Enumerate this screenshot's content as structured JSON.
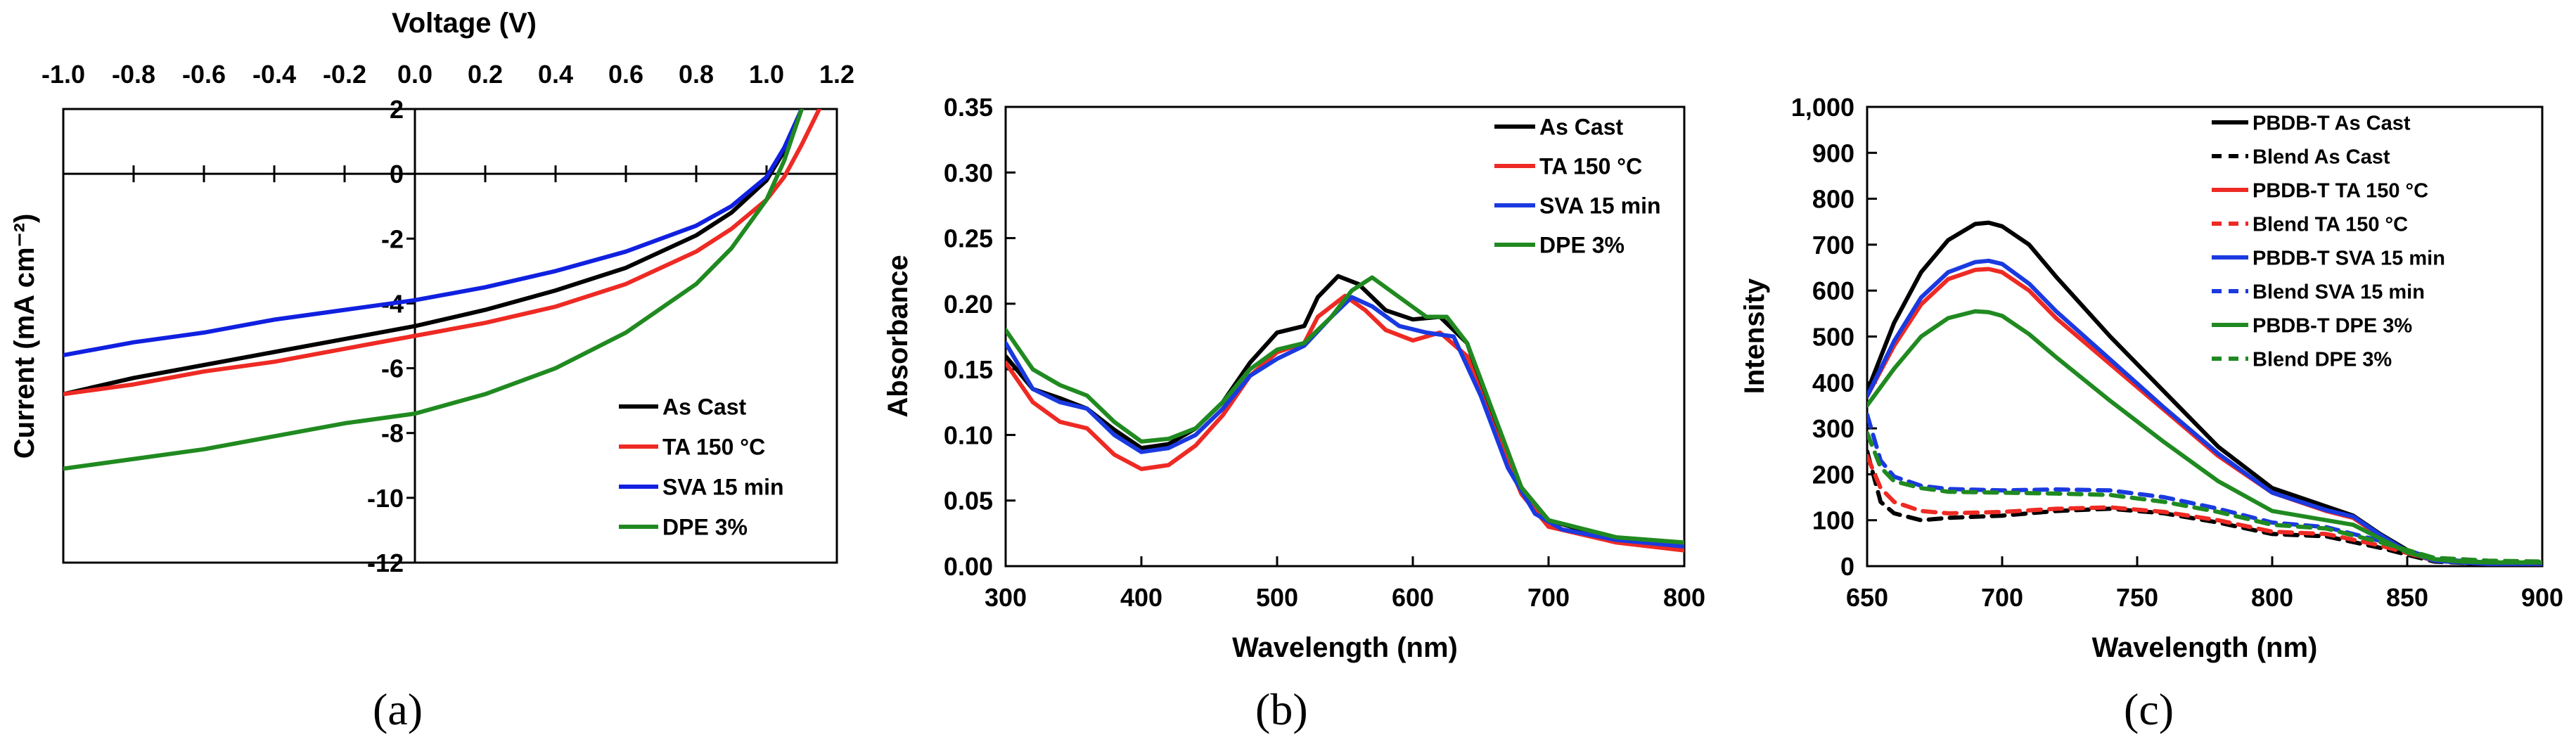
{
  "chart_data": [
    {
      "type": "line",
      "panel_label": "(a)",
      "title": "",
      "xlabel": "Voltage (V)",
      "ylabel": "Current (mA cm⁻²)",
      "xlim": [
        -1.0,
        1.2
      ],
      "ylim": [
        -12,
        2
      ],
      "xticks": [
        -1.0,
        -0.8,
        -0.6,
        -0.4,
        -0.2,
        0.0,
        0.2,
        0.4,
        0.6,
        0.8,
        1.0,
        1.2
      ],
      "xtick_labels": [
        "-1.0",
        "-0.8",
        "-0.6",
        "-0.4",
        "-0.2",
        "0.0",
        "0.2",
        "0.4",
        "0.6",
        "0.8",
        "1.0",
        "1.2"
      ],
      "yticks": [
        2,
        0,
        -2,
        -4,
        -6,
        -8,
        -10,
        -12
      ],
      "ytick_labels": [
        "2",
        "0",
        "-2",
        "-4",
        "-6",
        "-8",
        "-10",
        "-12"
      ],
      "legend_position": "bottom-right",
      "series": [
        {
          "name": "As Cast",
          "color": "#000000",
          "dashed": false,
          "x": [
            -1.0,
            -0.8,
            -0.6,
            -0.4,
            -0.2,
            0.0,
            0.2,
            0.4,
            0.6,
            0.8,
            0.9,
            1.0,
            1.05,
            1.1
          ],
          "y": [
            -6.8,
            -6.3,
            -5.9,
            -5.5,
            -5.1,
            -4.7,
            -4.2,
            -3.6,
            -2.9,
            -1.9,
            -1.2,
            -0.2,
            0.7,
            2.0
          ]
        },
        {
          "name": "TA 150 °C",
          "color": "#ee2a24",
          "dashed": false,
          "x": [
            -1.0,
            -0.8,
            -0.6,
            -0.4,
            -0.2,
            0.0,
            0.2,
            0.4,
            0.6,
            0.8,
            0.9,
            1.0,
            1.05,
            1.1,
            1.15
          ],
          "y": [
            -6.8,
            -6.5,
            -6.1,
            -5.8,
            -5.4,
            -5.0,
            -4.6,
            -4.1,
            -3.4,
            -2.4,
            -1.7,
            -0.8,
            -0.1,
            0.9,
            2.0
          ]
        },
        {
          "name": "SVA 15 min",
          "color": "#1020e0",
          "dashed": false,
          "x": [
            -1.0,
            -0.8,
            -0.6,
            -0.4,
            -0.2,
            0.0,
            0.2,
            0.4,
            0.6,
            0.8,
            0.9,
            1.0,
            1.05,
            1.1
          ],
          "y": [
            -5.6,
            -5.2,
            -4.9,
            -4.5,
            -4.2,
            -3.9,
            -3.5,
            -3.0,
            -2.4,
            -1.6,
            -1.0,
            -0.1,
            0.8,
            2.0
          ]
        },
        {
          "name": "DPE 3%",
          "color": "#208a20",
          "dashed": false,
          "x": [
            -1.0,
            -0.8,
            -0.6,
            -0.4,
            -0.2,
            0.0,
            0.2,
            0.4,
            0.6,
            0.8,
            0.9,
            1.0,
            1.05,
            1.1
          ],
          "y": [
            -9.1,
            -8.8,
            -8.5,
            -8.1,
            -7.7,
            -7.4,
            -6.8,
            -6.0,
            -4.9,
            -3.4,
            -2.3,
            -0.8,
            0.4,
            2.0
          ]
        }
      ]
    },
    {
      "type": "line",
      "panel_label": "(b)",
      "title": "",
      "xlabel": "Wavelength (nm)",
      "ylabel": "Absorbance",
      "xlim": [
        300,
        800
      ],
      "ylim": [
        0,
        0.35
      ],
      "xticks": [
        300,
        400,
        500,
        600,
        700,
        800
      ],
      "xtick_labels": [
        "300",
        "400",
        "500",
        "600",
        "700",
        "800"
      ],
      "yticks": [
        0,
        0.05,
        0.1,
        0.15,
        0.2,
        0.25,
        0.3,
        0.35
      ],
      "ytick_labels": [
        "0.00",
        "0.05",
        "0.10",
        "0.15",
        "0.20",
        "0.25",
        "0.30",
        "0.35"
      ],
      "legend_position": "top-right",
      "series": [
        {
          "name": "As Cast",
          "color": "#000000",
          "dashed": false,
          "x": [
            300,
            320,
            340,
            360,
            380,
            400,
            420,
            440,
            460,
            480,
            500,
            520,
            530,
            545,
            560,
            580,
            600,
            620,
            640,
            660,
            680,
            700,
            750,
            800
          ],
          "y": [
            0.16,
            0.135,
            0.128,
            0.12,
            0.104,
            0.09,
            0.093,
            0.105,
            0.125,
            0.155,
            0.178,
            0.183,
            0.205,
            0.221,
            0.215,
            0.195,
            0.188,
            0.19,
            0.17,
            0.11,
            0.06,
            0.035,
            0.02,
            0.015
          ]
        },
        {
          "name": "TA 150 °C",
          "color": "#ee2a24",
          "dashed": false,
          "x": [
            300,
            320,
            340,
            360,
            380,
            400,
            420,
            440,
            460,
            480,
            500,
            520,
            530,
            550,
            565,
            580,
            600,
            620,
            640,
            660,
            680,
            700,
            750,
            800
          ],
          "y": [
            0.155,
            0.125,
            0.11,
            0.105,
            0.085,
            0.074,
            0.077,
            0.092,
            0.115,
            0.145,
            0.163,
            0.17,
            0.19,
            0.206,
            0.195,
            0.18,
            0.172,
            0.178,
            0.16,
            0.105,
            0.055,
            0.03,
            0.018,
            0.012
          ]
        },
        {
          "name": "SVA 15 min",
          "color": "#1a3ae0",
          "dashed": false,
          "x": [
            300,
            320,
            340,
            360,
            380,
            400,
            420,
            440,
            460,
            480,
            500,
            520,
            540,
            555,
            570,
            590,
            610,
            630,
            650,
            670,
            690,
            710,
            750,
            800
          ],
          "y": [
            0.17,
            0.135,
            0.125,
            0.12,
            0.1,
            0.087,
            0.09,
            0.1,
            0.12,
            0.145,
            0.158,
            0.168,
            0.19,
            0.205,
            0.198,
            0.183,
            0.178,
            0.175,
            0.13,
            0.075,
            0.04,
            0.028,
            0.02,
            0.015
          ]
        },
        {
          "name": "DPE 3%",
          "color": "#208a20",
          "dashed": false,
          "x": [
            300,
            320,
            340,
            360,
            380,
            400,
            420,
            440,
            460,
            480,
            500,
            520,
            540,
            555,
            570,
            590,
            610,
            625,
            640,
            660,
            680,
            700,
            750,
            800
          ],
          "y": [
            0.18,
            0.15,
            0.138,
            0.13,
            0.11,
            0.095,
            0.097,
            0.105,
            0.125,
            0.15,
            0.165,
            0.17,
            0.19,
            0.21,
            0.22,
            0.205,
            0.19,
            0.19,
            0.17,
            0.115,
            0.06,
            0.035,
            0.022,
            0.018
          ]
        }
      ]
    },
    {
      "type": "line",
      "panel_label": "(c)",
      "title": "",
      "xlabel": "Wavelength (nm)",
      "ylabel": "Intensity",
      "xlim": [
        650,
        900
      ],
      "ylim": [
        0,
        1000
      ],
      "xticks": [
        650,
        700,
        750,
        800,
        850,
        900
      ],
      "xtick_labels": [
        "650",
        "700",
        "750",
        "800",
        "850",
        "900"
      ],
      "yticks": [
        0,
        100,
        200,
        300,
        400,
        500,
        600,
        700,
        800,
        900,
        1000
      ],
      "ytick_labels": [
        "0",
        "100",
        "200",
        "300",
        "400",
        "500",
        "600",
        "700",
        "800",
        "900",
        "1,000"
      ],
      "legend_position": "top-right",
      "series": [
        {
          "name": "PBDB-T As Cast",
          "color": "#000000",
          "dashed": false,
          "x": [
            650,
            660,
            670,
            680,
            690,
            695,
            700,
            710,
            720,
            740,
            760,
            780,
            800,
            820,
            830,
            840,
            850,
            860,
            870,
            880,
            890,
            900
          ],
          "y": [
            380,
            530,
            640,
            710,
            745,
            748,
            740,
            700,
            630,
            500,
            380,
            260,
            170,
            130,
            110,
            70,
            35,
            15,
            8,
            5,
            5,
            5
          ]
        },
        {
          "name": "Blend As Cast",
          "color": "#000000",
          "dashed": true,
          "x": [
            650,
            655,
            660,
            670,
            680,
            700,
            720,
            740,
            760,
            780,
            800,
            820,
            840,
            860,
            880,
            900
          ],
          "y": [
            250,
            140,
            115,
            100,
            105,
            110,
            120,
            125,
            115,
            95,
            70,
            65,
            40,
            10,
            5,
            5
          ]
        },
        {
          "name": "PBDB-T TA 150 °C",
          "color": "#ee2a24",
          "dashed": false,
          "x": [
            650,
            660,
            670,
            680,
            690,
            695,
            700,
            710,
            720,
            740,
            760,
            780,
            800,
            820,
            830,
            840,
            850,
            860,
            870,
            880,
            890,
            900
          ],
          "y": [
            370,
            480,
            570,
            625,
            645,
            647,
            640,
            600,
            540,
            440,
            340,
            240,
            160,
            120,
            105,
            65,
            30,
            12,
            8,
            5,
            5,
            5
          ]
        },
        {
          "name": "Blend TA 150 °C",
          "color": "#ee2a24",
          "dashed": true,
          "x": [
            650,
            655,
            660,
            670,
            680,
            700,
            720,
            740,
            760,
            780,
            800,
            820,
            840,
            860,
            880,
            900
          ],
          "y": [
            240,
            170,
            140,
            120,
            115,
            118,
            125,
            128,
            118,
            100,
            75,
            70,
            45,
            12,
            6,
            5
          ]
        },
        {
          "name": "PBDB-T SVA 15 min",
          "color": "#1a3ae0",
          "dashed": false,
          "x": [
            650,
            660,
            670,
            680,
            690,
            695,
            700,
            710,
            720,
            740,
            760,
            780,
            800,
            820,
            830,
            840,
            850,
            860,
            870,
            880,
            890,
            900
          ],
          "y": [
            370,
            490,
            585,
            640,
            662,
            665,
            658,
            615,
            555,
            450,
            345,
            245,
            160,
            122,
            108,
            68,
            32,
            12,
            8,
            5,
            5,
            5
          ]
        },
        {
          "name": "Blend SVA 15 min",
          "color": "#1a3ae0",
          "dashed": true,
          "x": [
            650,
            655,
            660,
            670,
            680,
            700,
            720,
            740,
            760,
            780,
            800,
            820,
            840,
            860,
            880,
            900
          ],
          "y": [
            330,
            230,
            195,
            175,
            168,
            165,
            167,
            165,
            150,
            125,
            95,
            85,
            55,
            15,
            8,
            5
          ]
        },
        {
          "name": "PBDB-T DPE 3%",
          "color": "#208a20",
          "dashed": false,
          "x": [
            650,
            660,
            670,
            680,
            690,
            695,
            700,
            710,
            720,
            740,
            760,
            780,
            800,
            820,
            830,
            840,
            850,
            860,
            870,
            880,
            890,
            900
          ],
          "y": [
            350,
            430,
            500,
            540,
            555,
            553,
            545,
            505,
            455,
            360,
            270,
            185,
            120,
            100,
            90,
            60,
            30,
            15,
            10,
            8,
            8,
            8
          ]
        },
        {
          "name": "Blend DPE 3%",
          "color": "#208a20",
          "dashed": true,
          "x": [
            650,
            655,
            660,
            670,
            680,
            700,
            720,
            740,
            760,
            780,
            800,
            820,
            840,
            860,
            880,
            900
          ],
          "y": [
            290,
            215,
            185,
            170,
            162,
            160,
            158,
            155,
            140,
            118,
            90,
            82,
            52,
            18,
            12,
            10
          ]
        }
      ]
    }
  ]
}
